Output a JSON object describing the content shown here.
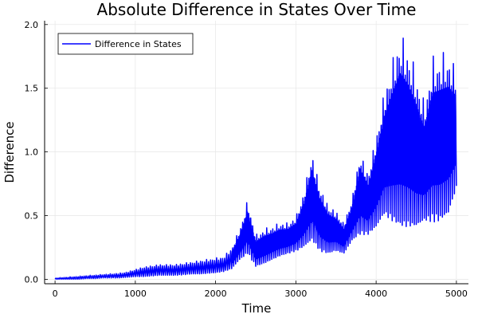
{
  "chart_data": {
    "type": "line",
    "title": "Absolute Difference in States Over Time",
    "xlabel": "Time",
    "ylabel": "Difference",
    "xlim": [
      -130,
      5150
    ],
    "ylim": [
      -0.035,
      2.03
    ],
    "xticks": [
      0,
      1000,
      2000,
      3000,
      4000,
      5000
    ],
    "xtick_labels": [
      "0",
      "1000",
      "2000",
      "3000",
      "4000",
      "5000"
    ],
    "yticks": [
      0,
      0.5,
      1,
      1.5,
      2
    ],
    "ytick_labels": [
      "0.0",
      "0.5",
      "1.0",
      "1.5",
      "2.0"
    ],
    "grid": true,
    "legend_position": "top-left",
    "series": [
      {
        "name": "Difference in States",
        "color": "#0000ff",
        "note_style": "rapid oscillation between lower and upper envelope",
        "x": [
          0,
          100,
          200,
          300,
          400,
          500,
          600,
          700,
          800,
          900,
          1000,
          1100,
          1200,
          1300,
          1400,
          1500,
          1600,
          1700,
          1800,
          1900,
          2000,
          2100,
          2200,
          2300,
          2400,
          2500,
          2600,
          2700,
          2800,
          2900,
          3000,
          3100,
          3200,
          3300,
          3400,
          3500,
          3600,
          3700,
          3800,
          3900,
          4000,
          4100,
          4200,
          4300,
          4400,
          4500,
          4600,
          4700,
          4800,
          4900,
          5000
        ],
        "upper": [
          0.01,
          0.015,
          0.02,
          0.025,
          0.03,
          0.035,
          0.04,
          0.045,
          0.05,
          0.06,
          0.08,
          0.1,
          0.11,
          0.12,
          0.12,
          0.12,
          0.13,
          0.14,
          0.15,
          0.16,
          0.17,
          0.18,
          0.25,
          0.4,
          0.63,
          0.35,
          0.4,
          0.42,
          0.45,
          0.45,
          0.5,
          0.7,
          1.02,
          0.75,
          0.6,
          0.55,
          0.45,
          0.65,
          1.02,
          0.85,
          1.15,
          1.5,
          1.75,
          1.97,
          1.85,
          1.65,
          1.4,
          1.75,
          1.78,
          1.8,
          1.65
        ],
        "lower": [
          0,
          0,
          0,
          0,
          0.005,
          0.005,
          0.01,
          0.01,
          0.01,
          0.015,
          0.02,
          0.02,
          0.025,
          0.03,
          0.03,
          0.03,
          0.035,
          0.04,
          0.04,
          0.045,
          0.05,
          0.06,
          0.08,
          0.15,
          0.2,
          0.1,
          0.12,
          0.15,
          0.18,
          0.2,
          0.22,
          0.25,
          0.3,
          0.22,
          0.2,
          0.22,
          0.2,
          0.3,
          0.35,
          0.35,
          0.4,
          0.5,
          0.45,
          0.4,
          0.4,
          0.4,
          0.45,
          0.45,
          0.45,
          0.5,
          0.7
        ]
      }
    ]
  }
}
